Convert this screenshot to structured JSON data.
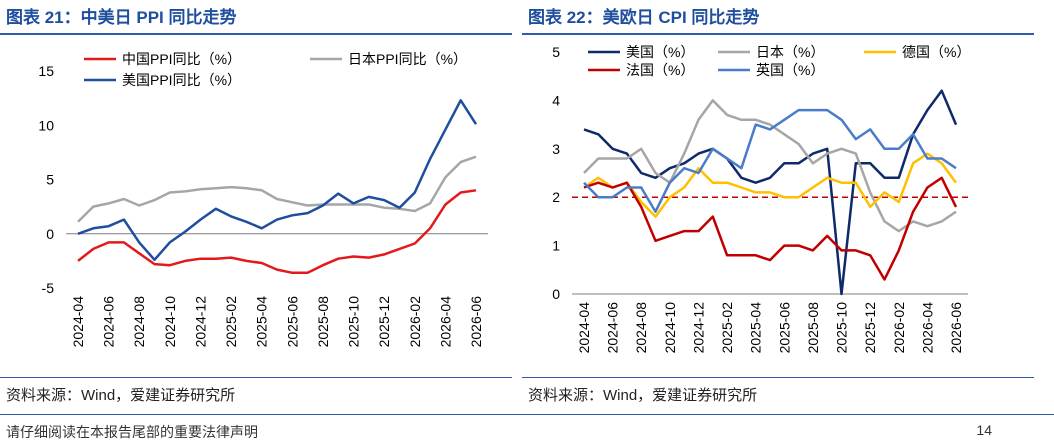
{
  "charts": [
    {
      "title": "图表 21：中美日 PPI 同比走势",
      "source": "资料来源：Wind，爱建证券研究所"
    },
    {
      "title": "图表 22：美欧日 CPI 同比走势",
      "source": "资料来源：Wind，爱建证券研究所"
    }
  ],
  "footer": {
    "disclaimer": "请仔细阅读在本报告尾部的重要法律声明",
    "page": "14"
  },
  "chart_data": [
    {
      "type": "line",
      "title": "",
      "xlabel": "",
      "ylabel": "",
      "ylim": [
        -5,
        15
      ],
      "yticks": [
        -5,
        0,
        5,
        10,
        15
      ],
      "xtick_labels": [
        "2024-04",
        "2024-06",
        "2024-08",
        "2024-10",
        "2024-12",
        "2025-02",
        "2025-04",
        "2025-06",
        "2025-08",
        "2025-10",
        "2025-12",
        "2026-02",
        "2026-04",
        "2026-06"
      ],
      "grid": false,
      "legend": "top",
      "x": [
        "2024-04",
        "2024-05",
        "2024-06",
        "2024-07",
        "2024-08",
        "2024-09",
        "2024-10",
        "2024-11",
        "2024-12",
        "2025-01",
        "2025-02",
        "2025-03",
        "2025-04",
        "2025-05",
        "2025-06",
        "2025-07",
        "2025-08",
        "2025-09",
        "2025-10",
        "2025-11",
        "2025-12",
        "2026-01",
        "2026-02",
        "2026-03",
        "2026-04",
        "2026-05",
        "2026-06"
      ],
      "series": [
        {
          "name": "中国PPI同比（%）",
          "color": "#e31a1c",
          "values": [
            -2.5,
            -1.4,
            -0.8,
            -0.8,
            -1.8,
            -2.8,
            -2.9,
            -2.5,
            -2.3,
            -2.3,
            -2.2,
            -2.5,
            -2.7,
            -3.3,
            -3.6,
            -3.6,
            -2.9,
            -2.3,
            -2.1,
            -2.2,
            -1.9,
            -1.4,
            -0.9,
            0.5,
            2.7,
            3.8,
            4.0
          ]
        },
        {
          "name": "日本PPI同比（%）",
          "color": "#a6a6a6",
          "values": [
            1.1,
            2.5,
            2.8,
            3.2,
            2.6,
            3.1,
            3.8,
            3.9,
            4.1,
            4.2,
            4.3,
            4.2,
            4.0,
            3.2,
            2.9,
            2.6,
            2.7,
            2.7,
            2.7,
            2.7,
            2.4,
            2.3,
            2.1,
            2.8,
            5.2,
            6.6,
            7.1
          ]
        },
        {
          "name": "美国PPI同比（%）",
          "color": "#1f4e9e",
          "values": [
            0.0,
            0.5,
            0.7,
            1.3,
            -0.8,
            -2.4,
            -0.8,
            0.2,
            1.3,
            2.3,
            1.6,
            1.1,
            0.5,
            1.3,
            1.7,
            1.9,
            2.6,
            3.7,
            2.8,
            3.4,
            3.1,
            2.4,
            3.8,
            6.9,
            9.6,
            12.3,
            10.1
          ]
        }
      ]
    },
    {
      "type": "line",
      "title": "",
      "xlabel": "",
      "ylabel": "",
      "ylim": [
        0,
        5
      ],
      "yticks": [
        0,
        1,
        2,
        3,
        4,
        5
      ],
      "xtick_labels": [
        "2024-04",
        "2024-06",
        "2024-08",
        "2024-10",
        "2024-12",
        "2025-02",
        "2025-04",
        "2025-06",
        "2025-08",
        "2025-10",
        "2025-12",
        "2026-02",
        "2026-04",
        "2026-06"
      ],
      "grid": false,
      "legend": "top",
      "reference_line": {
        "y": 2,
        "color": "#c00000",
        "style": "dashed"
      },
      "x": [
        "2024-04",
        "2024-05",
        "2024-06",
        "2024-07",
        "2024-08",
        "2024-09",
        "2024-10",
        "2024-11",
        "2024-12",
        "2025-01",
        "2025-02",
        "2025-03",
        "2025-04",
        "2025-05",
        "2025-06",
        "2025-07",
        "2025-08",
        "2025-09",
        "2025-10",
        "2025-11",
        "2025-12",
        "2026-01",
        "2026-02",
        "2026-03",
        "2026-04",
        "2026-05",
        "2026-06"
      ],
      "series": [
        {
          "name": "美国（%）",
          "color": "#0f2a6b",
          "values": [
            3.4,
            3.3,
            3.0,
            2.9,
            2.5,
            2.4,
            2.6,
            2.7,
            2.9,
            3.0,
            2.8,
            2.4,
            2.3,
            2.4,
            2.7,
            2.7,
            2.9,
            3.0,
            0.0,
            2.7,
            2.7,
            2.4,
            2.4,
            3.3,
            3.8,
            4.2,
            3.5
          ]
        },
        {
          "name": "日本（%）",
          "color": "#a6a6a6",
          "values": [
            2.5,
            2.8,
            2.8,
            2.8,
            3.0,
            2.5,
            2.3,
            2.9,
            3.6,
            4.0,
            3.7,
            3.6,
            3.6,
            3.5,
            3.3,
            3.1,
            2.7,
            2.9,
            3.0,
            2.9,
            2.1,
            1.5,
            1.3,
            1.5,
            1.4,
            1.5,
            1.7
          ]
        },
        {
          "name": "德国（%）",
          "color": "#ffc000",
          "values": [
            2.2,
            2.4,
            2.2,
            2.3,
            1.9,
            1.6,
            2.0,
            2.2,
            2.6,
            2.3,
            2.3,
            2.2,
            2.1,
            2.1,
            2.0,
            2.0,
            2.2,
            2.4,
            2.3,
            2.3,
            1.8,
            2.1,
            1.9,
            2.7,
            2.9,
            2.7,
            2.3
          ]
        },
        {
          "name": "法国（%）",
          "color": "#c00000",
          "values": [
            2.2,
            2.3,
            2.2,
            2.3,
            1.8,
            1.1,
            1.2,
            1.3,
            1.3,
            1.6,
            0.8,
            0.8,
            0.8,
            0.7,
            1.0,
            1.0,
            0.9,
            1.2,
            0.9,
            0.9,
            0.8,
            0.3,
            0.9,
            1.7,
            2.2,
            2.4,
            1.8
          ]
        },
        {
          "name": "英国（%）",
          "color": "#4a7cc9",
          "values": [
            2.3,
            2.0,
            2.0,
            2.2,
            2.2,
            1.7,
            2.3,
            2.6,
            2.5,
            3.0,
            2.8,
            2.6,
            3.5,
            3.4,
            3.6,
            3.8,
            3.8,
            3.8,
            3.6,
            3.2,
            3.4,
            3.0,
            3.0,
            3.3,
            2.8,
            2.8,
            2.6
          ]
        }
      ]
    }
  ]
}
